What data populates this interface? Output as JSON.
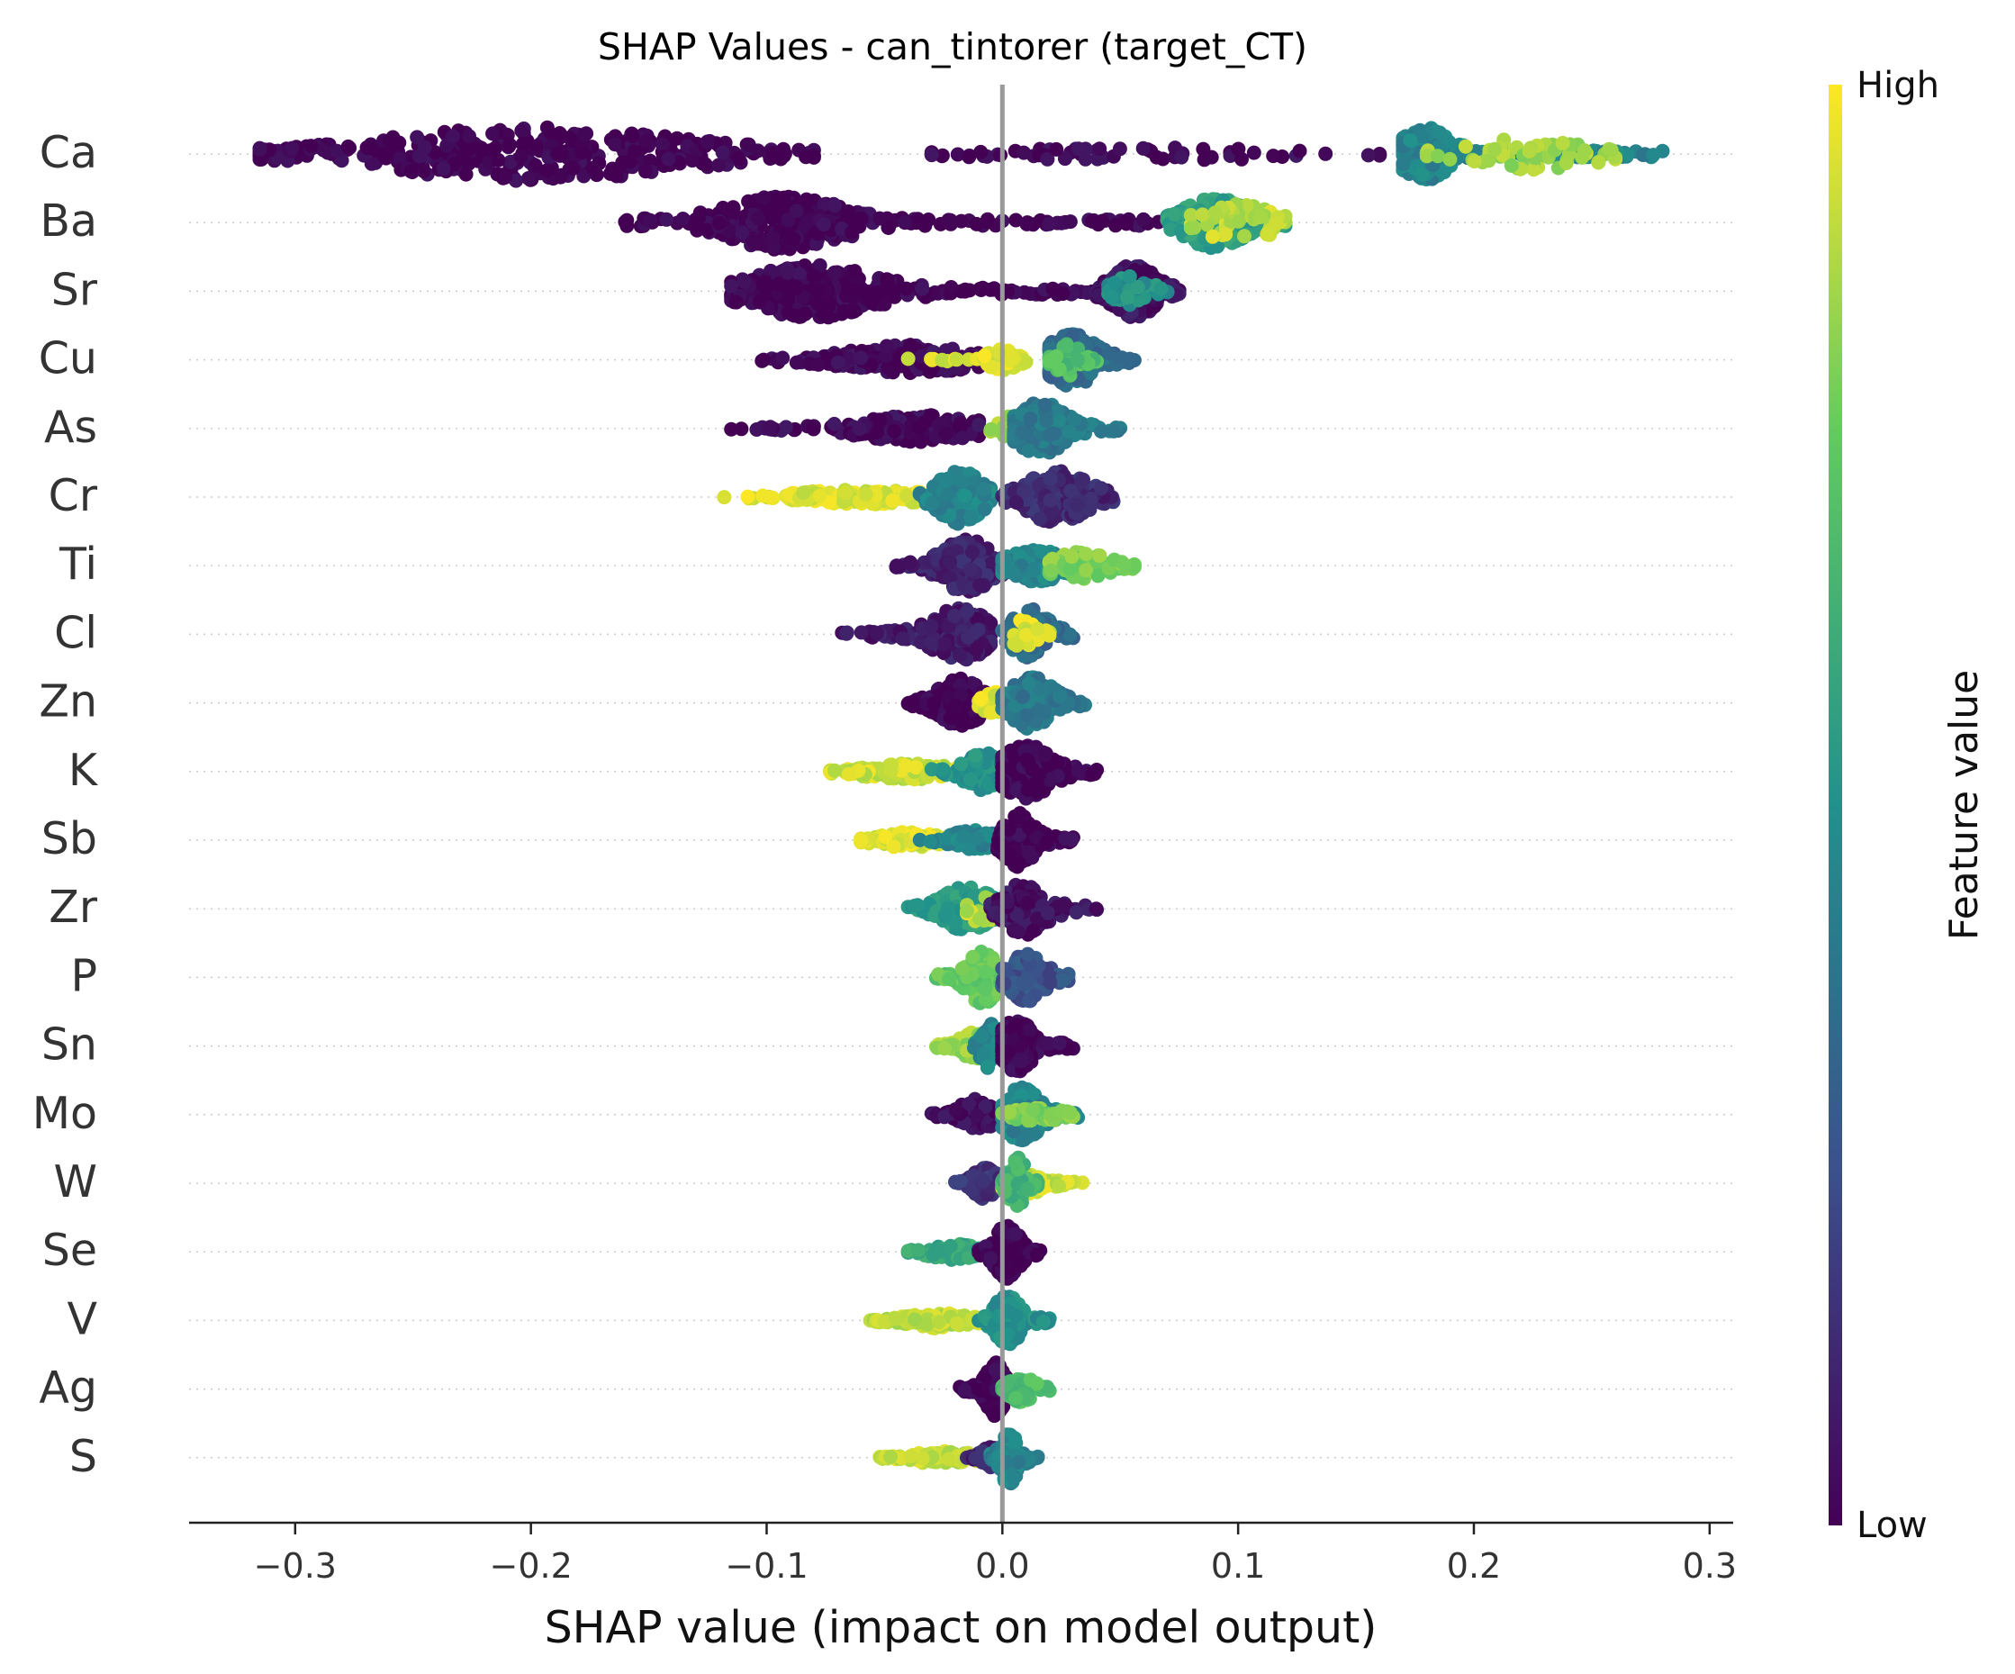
{
  "chart_data": {
    "type": "scatter",
    "subtype": "shap-beeswarm",
    "title": "SHAP Values - can_tintorer (target_CT)",
    "xlabel": "SHAP value (impact on model output)",
    "ylabel": "",
    "xlim": [
      -0.345,
      0.31
    ],
    "x_ticks": [
      -0.3,
      -0.2,
      -0.1,
      0.0,
      0.1,
      0.2,
      0.3
    ],
    "x_tick_labels": [
      "−0.3",
      "−0.2",
      "−0.1",
      "0.0",
      "0.1",
      "0.2",
      "0.3"
    ],
    "zero_line": true,
    "grid": false,
    "colorbar": {
      "label": "Feature value",
      "high_label": "High",
      "low_label": "Low",
      "colormap": [
        "#440154",
        "#3b528b",
        "#21918c",
        "#5ec962",
        "#fde725"
      ]
    },
    "features": [
      {
        "name": "Ca",
        "groups": [
          {
            "range": [
              -0.315,
              -0.08
            ],
            "center": -0.2,
            "spread": 0.05,
            "color": 0.0,
            "n": 340,
            "height": 1.0
          },
          {
            "range": [
              -0.03,
              0.16
            ],
            "center": 0.06,
            "spread": 0.05,
            "color": 0.02,
            "n": 60,
            "height": 0.25
          },
          {
            "range": [
              0.17,
              0.28
            ],
            "center": 0.18,
            "spread": 0.008,
            "color": 0.45,
            "n": 230,
            "height": 1.0
          },
          {
            "range": [
              0.18,
              0.26
            ],
            "center": 0.225,
            "spread": 0.02,
            "color": 0.85,
            "n": 60,
            "height": 0.6
          }
        ]
      },
      {
        "name": "Ba",
        "groups": [
          {
            "range": [
              -0.16,
              0.08
            ],
            "center": -0.093,
            "spread": 0.02,
            "color": 0.0,
            "n": 340,
            "height": 1.0
          },
          {
            "range": [
              0.07,
              0.12
            ],
            "center": 0.09,
            "spread": 0.01,
            "color": 0.55,
            "n": 200,
            "height": 0.95
          },
          {
            "range": [
              0.08,
              0.12
            ],
            "center": 0.1,
            "spread": 0.012,
            "color": 0.9,
            "n": 50,
            "height": 0.7
          }
        ]
      },
      {
        "name": "Sr",
        "groups": [
          {
            "range": [
              -0.115,
              0.045
            ],
            "center": -0.08,
            "spread": 0.02,
            "color": 0.0,
            "n": 340,
            "height": 1.0
          },
          {
            "range": [
              0.04,
              0.075
            ],
            "center": 0.056,
            "spread": 0.007,
            "color": 0.05,
            "n": 220,
            "height": 1.0
          },
          {
            "range": [
              0.045,
              0.07
            ],
            "center": 0.055,
            "spread": 0.006,
            "color": 0.5,
            "n": 40,
            "height": 0.6
          }
        ]
      },
      {
        "name": "Cu",
        "groups": [
          {
            "range": [
              -0.102,
              -0.01
            ],
            "center": -0.04,
            "spread": 0.02,
            "color": 0.02,
            "n": 200,
            "height": 0.55
          },
          {
            "range": [
              -0.04,
              0.01
            ],
            "center": 0.0,
            "spread": 0.005,
            "color": 0.95,
            "n": 70,
            "height": 0.4
          },
          {
            "range": [
              0.02,
              0.056
            ],
            "center": 0.03,
            "spread": 0.008,
            "color": 0.35,
            "n": 180,
            "height": 1.0
          },
          {
            "range": [
              0.02,
              0.04
            ],
            "center": 0.028,
            "spread": 0.004,
            "color": 0.7,
            "n": 40,
            "height": 0.6
          }
        ]
      },
      {
        "name": "As",
        "groups": [
          {
            "range": [
              -0.115,
              -0.01
            ],
            "center": -0.035,
            "spread": 0.02,
            "color": 0.02,
            "n": 200,
            "height": 0.5
          },
          {
            "range": [
              -0.005,
              0.025
            ],
            "center": 0.008,
            "spread": 0.006,
            "color": 0.85,
            "n": 70,
            "height": 0.6
          },
          {
            "range": [
              0.005,
              0.05
            ],
            "center": 0.016,
            "spread": 0.008,
            "color": 0.4,
            "n": 170,
            "height": 1.0
          }
        ]
      },
      {
        "name": "Cr",
        "groups": [
          {
            "range": [
              -0.118,
              -0.035
            ],
            "center": -0.06,
            "spread": 0.02,
            "color": 0.95,
            "n": 150,
            "height": 0.3
          },
          {
            "range": [
              -0.035,
              -0.005
            ],
            "center": -0.018,
            "spread": 0.007,
            "color": 0.45,
            "n": 140,
            "height": 1.0
          },
          {
            "range": [
              0.0,
              0.047
            ],
            "center": 0.023,
            "spread": 0.01,
            "color": 0.12,
            "n": 170,
            "height": 1.0
          }
        ]
      },
      {
        "name": "Ti",
        "groups": [
          {
            "range": [
              -0.045,
              0.0
            ],
            "center": -0.015,
            "spread": 0.008,
            "color": 0.1,
            "n": 160,
            "height": 1.0
          },
          {
            "range": [
              0.0,
              0.04
            ],
            "center": 0.015,
            "spread": 0.01,
            "color": 0.45,
            "n": 140,
            "height": 0.6
          },
          {
            "range": [
              0.02,
              0.056
            ],
            "center": 0.032,
            "spread": 0.01,
            "color": 0.8,
            "n": 80,
            "height": 0.5
          }
        ]
      },
      {
        "name": "Cl",
        "groups": [
          {
            "range": [
              -0.068,
              -0.005
            ],
            "center": -0.018,
            "spread": 0.009,
            "color": 0.08,
            "n": 180,
            "height": 1.0
          },
          {
            "range": [
              0.0,
              0.03
            ],
            "center": 0.012,
            "spread": 0.006,
            "color": 0.35,
            "n": 120,
            "height": 0.95
          },
          {
            "range": [
              0.005,
              0.02
            ],
            "center": 0.01,
            "spread": 0.004,
            "color": 0.95,
            "n": 25,
            "height": 0.6
          }
        ]
      },
      {
        "name": "Zn",
        "groups": [
          {
            "range": [
              -0.04,
              -0.002
            ],
            "center": -0.018,
            "spread": 0.007,
            "color": 0.0,
            "n": 170,
            "height": 0.9
          },
          {
            "range": [
              -0.01,
              0.005
            ],
            "center": -0.003,
            "spread": 0.004,
            "color": 0.95,
            "n": 30,
            "height": 0.5
          },
          {
            "range": [
              0.0,
              0.035
            ],
            "center": 0.013,
            "spread": 0.007,
            "color": 0.4,
            "n": 140,
            "height": 1.0
          }
        ]
      },
      {
        "name": "K",
        "groups": [
          {
            "range": [
              -0.073,
              -0.015
            ],
            "center": -0.04,
            "spread": 0.015,
            "color": 0.92,
            "n": 140,
            "height": 0.3
          },
          {
            "range": [
              -0.03,
              0.0
            ],
            "center": -0.008,
            "spread": 0.006,
            "color": 0.5,
            "n": 110,
            "height": 0.7
          },
          {
            "range": [
              0.0,
              0.04
            ],
            "center": 0.01,
            "spread": 0.008,
            "color": 0.0,
            "n": 170,
            "height": 1.0
          }
        ]
      },
      {
        "name": "Sb",
        "groups": [
          {
            "range": [
              -0.06,
              -0.02
            ],
            "center": -0.04,
            "spread": 0.01,
            "color": 0.95,
            "n": 90,
            "height": 0.3
          },
          {
            "range": [
              -0.035,
              0.0
            ],
            "center": -0.012,
            "spread": 0.007,
            "color": 0.45,
            "n": 90,
            "height": 0.4
          },
          {
            "range": [
              -0.002,
              0.03
            ],
            "center": 0.007,
            "spread": 0.005,
            "color": 0.0,
            "n": 160,
            "height": 1.0
          }
        ]
      },
      {
        "name": "Zr",
        "groups": [
          {
            "range": [
              -0.04,
              0.0
            ],
            "center": -0.015,
            "spread": 0.008,
            "color": 0.55,
            "n": 140,
            "height": 0.85
          },
          {
            "range": [
              -0.015,
              0.0
            ],
            "center": -0.008,
            "spread": 0.004,
            "color": 0.9,
            "n": 25,
            "height": 0.6
          },
          {
            "range": [
              -0.005,
              0.04
            ],
            "center": 0.01,
            "spread": 0.007,
            "color": 0.05,
            "n": 150,
            "height": 1.0
          }
        ]
      },
      {
        "name": "P",
        "groups": [
          {
            "range": [
              -0.028,
              0.0
            ],
            "center": -0.008,
            "spread": 0.005,
            "color": 0.75,
            "n": 120,
            "height": 1.0
          },
          {
            "range": [
              0.0,
              0.028
            ],
            "center": 0.01,
            "spread": 0.006,
            "color": 0.25,
            "n": 120,
            "height": 0.9
          }
        ]
      },
      {
        "name": "Sn",
        "groups": [
          {
            "range": [
              -0.028,
              -0.003
            ],
            "center": -0.012,
            "spread": 0.005,
            "color": 0.85,
            "n": 70,
            "height": 0.5
          },
          {
            "range": [
              -0.012,
              0.0
            ],
            "center": -0.005,
            "spread": 0.003,
            "color": 0.45,
            "n": 70,
            "height": 0.9
          },
          {
            "range": [
              0.0,
              0.03
            ],
            "center": 0.006,
            "spread": 0.005,
            "color": 0.0,
            "n": 150,
            "height": 1.0
          }
        ]
      },
      {
        "name": "Mo",
        "groups": [
          {
            "range": [
              -0.03,
              0.0
            ],
            "center": -0.01,
            "spread": 0.006,
            "color": 0.03,
            "n": 120,
            "height": 0.6
          },
          {
            "range": [
              0.0,
              0.032
            ],
            "center": 0.008,
            "spread": 0.006,
            "color": 0.45,
            "n": 130,
            "height": 1.0
          },
          {
            "range": [
              0.0,
              0.03
            ],
            "center": 0.015,
            "spread": 0.008,
            "color": 0.8,
            "n": 40,
            "height": 0.3
          }
        ]
      },
      {
        "name": "W",
        "groups": [
          {
            "range": [
              -0.02,
              0.0
            ],
            "center": -0.007,
            "spread": 0.004,
            "color": 0.15,
            "n": 120,
            "height": 0.6
          },
          {
            "range": [
              0.0,
              0.034
            ],
            "center": 0.01,
            "spread": 0.007,
            "color": 0.92,
            "n": 80,
            "height": 0.4
          },
          {
            "range": [
              0.0,
              0.015
            ],
            "center": 0.006,
            "spread": 0.003,
            "color": 0.65,
            "n": 70,
            "height": 1.0
          }
        ]
      },
      {
        "name": "Se",
        "groups": [
          {
            "range": [
              -0.04,
              -0.005
            ],
            "center": -0.02,
            "spread": 0.008,
            "color": 0.6,
            "n": 90,
            "height": 0.3
          },
          {
            "range": [
              -0.01,
              0.016
            ],
            "center": 0.002,
            "spread": 0.004,
            "color": 0.0,
            "n": 170,
            "height": 1.0
          }
        ]
      },
      {
        "name": "V",
        "groups": [
          {
            "range": [
              -0.056,
              -0.01
            ],
            "center": -0.028,
            "spread": 0.01,
            "color": 0.9,
            "n": 110,
            "height": 0.3
          },
          {
            "range": [
              -0.01,
              0.02
            ],
            "center": 0.002,
            "spread": 0.004,
            "color": 0.5,
            "n": 170,
            "height": 1.0
          }
        ]
      },
      {
        "name": "Ag",
        "groups": [
          {
            "range": [
              -0.018,
              0.002
            ],
            "center": -0.003,
            "spread": 0.003,
            "color": 0.0,
            "n": 170,
            "height": 1.0
          },
          {
            "range": [
              0.0,
              0.02
            ],
            "center": 0.008,
            "spread": 0.004,
            "color": 0.7,
            "n": 50,
            "height": 0.5
          }
        ]
      },
      {
        "name": "S",
        "groups": [
          {
            "range": [
              -0.052,
              -0.01
            ],
            "center": -0.025,
            "spread": 0.01,
            "color": 0.9,
            "n": 90,
            "height": 0.25
          },
          {
            "range": [
              -0.015,
              0.0
            ],
            "center": -0.005,
            "spread": 0.003,
            "color": 0.1,
            "n": 60,
            "height": 0.4
          },
          {
            "range": [
              -0.005,
              0.015
            ],
            "center": 0.003,
            "spread": 0.003,
            "color": 0.45,
            "n": 130,
            "height": 1.0
          }
        ]
      }
    ]
  }
}
